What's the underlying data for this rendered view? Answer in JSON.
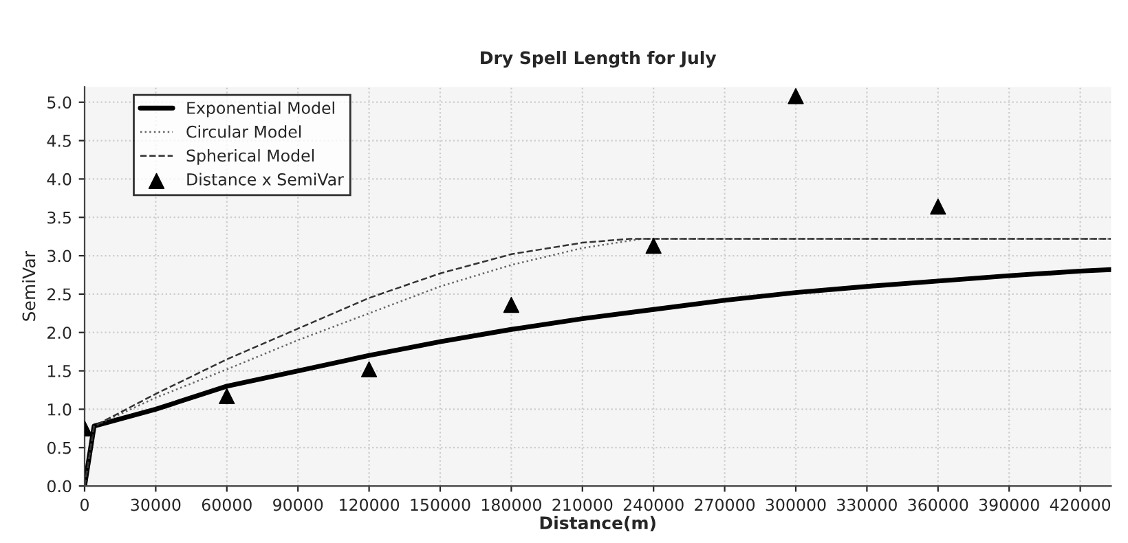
{
  "chart_data": {
    "type": "line",
    "title": "Dry Spell Length for July",
    "xlabel": "Distance(m)",
    "ylabel": "SemiVar",
    "xlim": [
      0,
      433000
    ],
    "xticks": [
      0,
      30000,
      60000,
      90000,
      120000,
      150000,
      180000,
      210000,
      240000,
      270000,
      300000,
      330000,
      360000,
      390000,
      420000
    ],
    "ylim": [
      0,
      5.2
    ],
    "yticks": [
      {
        "value": 0,
        "label": "0.0"
      },
      0.5,
      {
        "value": 1,
        "label": "1.0"
      },
      1.5,
      {
        "value": 2,
        "label": "2.0"
      },
      2.5,
      {
        "value": 3,
        "label": "3.0"
      },
      3.5,
      {
        "value": 4,
        "label": "4.0"
      },
      4.5,
      {
        "value": 5,
        "label": "5.0"
      }
    ],
    "grid": true,
    "legend": "top left",
    "series": [
      {
        "name": "Exponential Model",
        "color": "#000000",
        "line_style": "solid",
        "x": [
          0,
          4000,
          30000,
          60000,
          90000,
          120000,
          150000,
          180000,
          210000,
          240000,
          270000,
          300000,
          330000,
          360000,
          390000,
          420000,
          433000
        ],
        "values": [
          0,
          0.78,
          1.0,
          1.3,
          1.5,
          1.7,
          1.88,
          2.04,
          2.18,
          2.3,
          2.42,
          2.52,
          2.6,
          2.67,
          2.74,
          2.8,
          2.82
        ]
      },
      {
        "name": "Circular Model",
        "color": "#666666",
        "line_style": "dotted",
        "x": [
          0,
          4000,
          30000,
          60000,
          90000,
          120000,
          150000,
          180000,
          210000,
          235000,
          433000
        ],
        "values": [
          0,
          0.78,
          1.15,
          1.52,
          1.9,
          2.25,
          2.6,
          2.88,
          3.1,
          3.22,
          3.22
        ]
      },
      {
        "name": "Spherical Model",
        "color": "#333333",
        "line_style": "dashed",
        "x": [
          0,
          4000,
          30000,
          60000,
          90000,
          120000,
          150000,
          180000,
          210000,
          230000,
          433000
        ],
        "values": [
          0,
          0.78,
          1.2,
          1.65,
          2.05,
          2.45,
          2.77,
          3.02,
          3.17,
          3.22,
          3.22
        ]
      },
      {
        "name": "Distance x SemiVar",
        "type": "scatter",
        "color": "#000000",
        "marker": "triangle",
        "x": [
          0,
          60000,
          120000,
          180000,
          240000,
          300000,
          360000
        ],
        "values": [
          0.75,
          1.17,
          1.52,
          2.36,
          3.13,
          5.08,
          3.64
        ]
      }
    ]
  }
}
